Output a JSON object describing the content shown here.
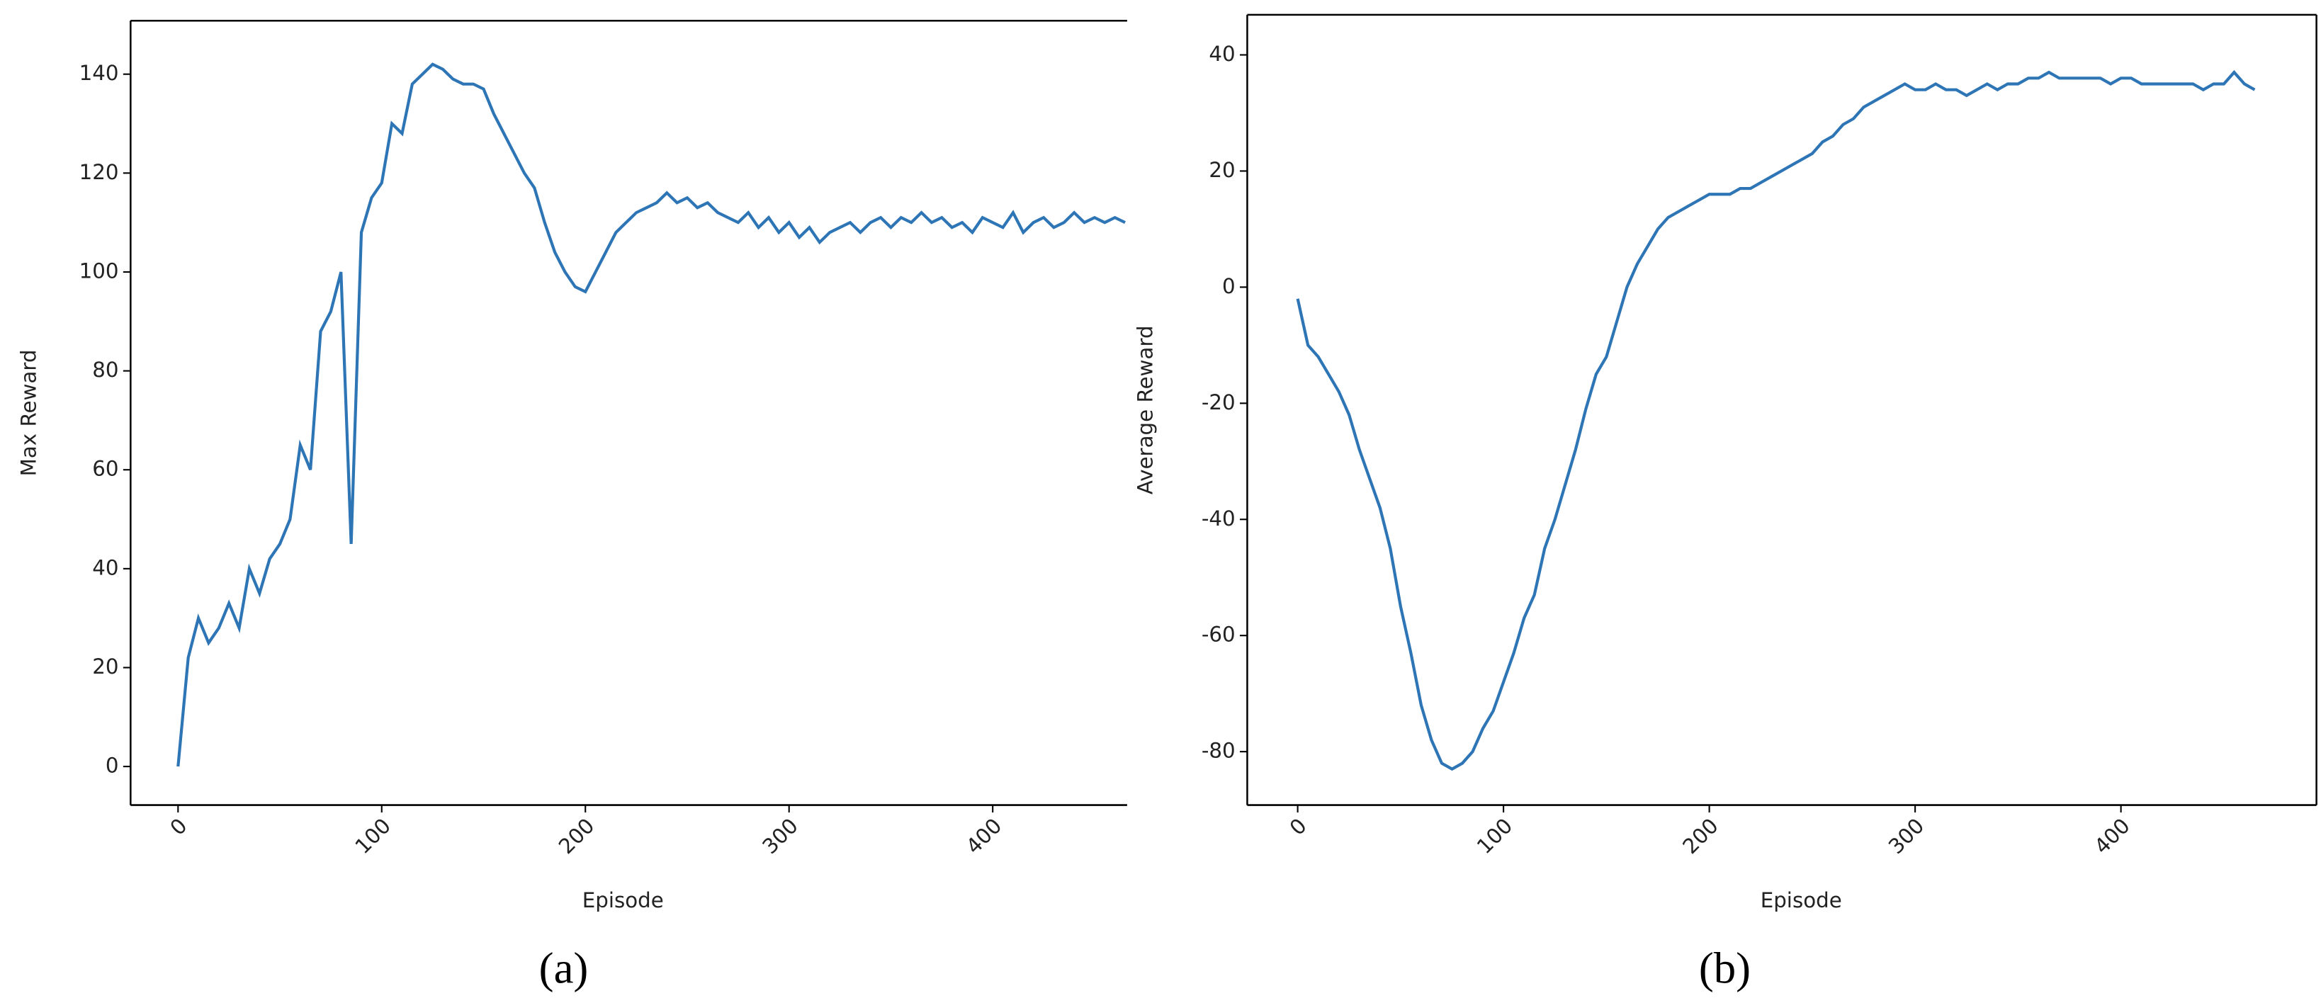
{
  "chart_data": [
    {
      "type": "line",
      "xlabel": "Episode",
      "ylabel": "Max Reward",
      "caption": "(a)",
      "color": "#2e75b6",
      "xlim": [
        -23.3,
        466
      ],
      "ylim": [
        -7.8,
        150.8
      ],
      "xticks": [
        0,
        100,
        200,
        300,
        400
      ],
      "yticks": [
        0,
        20,
        40,
        60,
        80,
        100,
        120,
        140
      ],
      "x": [
        0,
        5,
        10,
        15,
        20,
        25,
        30,
        35,
        40,
        45,
        50,
        55,
        60,
        65,
        70,
        75,
        80,
        85,
        90,
        95,
        100,
        105,
        110,
        115,
        120,
        125,
        130,
        135,
        140,
        145,
        150,
        155,
        160,
        165,
        170,
        175,
        180,
        185,
        190,
        195,
        200,
        205,
        210,
        215,
        220,
        225,
        230,
        235,
        240,
        245,
        250,
        255,
        260,
        265,
        270,
        275,
        280,
        285,
        290,
        295,
        300,
        305,
        310,
        315,
        320,
        325,
        330,
        335,
        340,
        345,
        350,
        355,
        360,
        365,
        370,
        375,
        380,
        385,
        390,
        395,
        400,
        405,
        410,
        415,
        420,
        425,
        430,
        435,
        440,
        445,
        450,
        455,
        460,
        465
      ],
      "values": [
        0,
        22,
        30,
        25,
        28,
        33,
        28,
        40,
        35,
        42,
        45,
        50,
        65,
        60,
        88,
        92,
        100,
        45,
        108,
        115,
        118,
        130,
        128,
        138,
        140,
        142,
        141,
        139,
        138,
        138,
        137,
        132,
        128,
        124,
        120,
        117,
        110,
        104,
        100,
        97,
        96,
        100,
        104,
        108,
        110,
        112,
        113,
        114,
        116,
        114,
        115,
        113,
        114,
        112,
        111,
        110,
        112,
        109,
        111,
        108,
        110,
        107,
        109,
        106,
        108,
        109,
        110,
        108,
        110,
        111,
        109,
        111,
        110,
        112,
        110,
        111,
        109,
        110,
        108,
        111,
        110,
        109,
        112,
        108,
        110,
        111,
        109,
        110,
        112,
        110,
        111,
        110,
        111,
        110
      ]
    },
    {
      "type": "line",
      "xlabel": "Episode",
      "ylabel": "Average Reward",
      "caption": "(b)",
      "color": "#2e75b6",
      "xlim": [
        -24.5,
        495
      ],
      "ylim": [
        -89.2,
        46.9
      ],
      "xticks": [
        0,
        100,
        200,
        300,
        400
      ],
      "yticks": [
        -80,
        -60,
        -40,
        -20,
        0,
        20,
        40
      ],
      "x": [
        0,
        5,
        10,
        15,
        20,
        25,
        30,
        35,
        40,
        45,
        50,
        55,
        60,
        65,
        70,
        75,
        80,
        85,
        90,
        95,
        100,
        105,
        110,
        115,
        120,
        125,
        130,
        135,
        140,
        145,
        150,
        155,
        160,
        165,
        170,
        175,
        180,
        185,
        190,
        195,
        200,
        205,
        210,
        215,
        220,
        225,
        230,
        235,
        240,
        245,
        250,
        255,
        260,
        265,
        270,
        275,
        280,
        285,
        290,
        295,
        300,
        305,
        310,
        315,
        320,
        325,
        330,
        335,
        340,
        345,
        350,
        355,
        360,
        365,
        370,
        375,
        380,
        385,
        390,
        395,
        400,
        405,
        410,
        415,
        420,
        425,
        430,
        435,
        440,
        445,
        450,
        455,
        460,
        465
      ],
      "values": [
        -2,
        -10,
        -12,
        -15,
        -18,
        -22,
        -28,
        -33,
        -38,
        -45,
        -55,
        -63,
        -72,
        -78,
        -82,
        -83,
        -82,
        -80,
        -76,
        -73,
        -68,
        -63,
        -57,
        -53,
        -45,
        -40,
        -34,
        -28,
        -21,
        -15,
        -12,
        -6,
        0,
        4,
        7,
        10,
        12,
        13,
        14,
        15,
        16,
        16,
        16,
        17,
        17,
        18,
        19,
        20,
        21,
        22,
        23,
        25,
        26,
        28,
        29,
        31,
        32,
        33,
        34,
        35,
        34,
        34,
        35,
        34,
        34,
        33,
        34,
        35,
        34,
        35,
        35,
        36,
        36,
        37,
        36,
        36,
        36,
        36,
        36,
        35,
        36,
        36,
        35,
        35,
        35,
        35,
        35,
        35,
        34,
        35,
        35,
        37,
        35,
        34
      ]
    }
  ]
}
